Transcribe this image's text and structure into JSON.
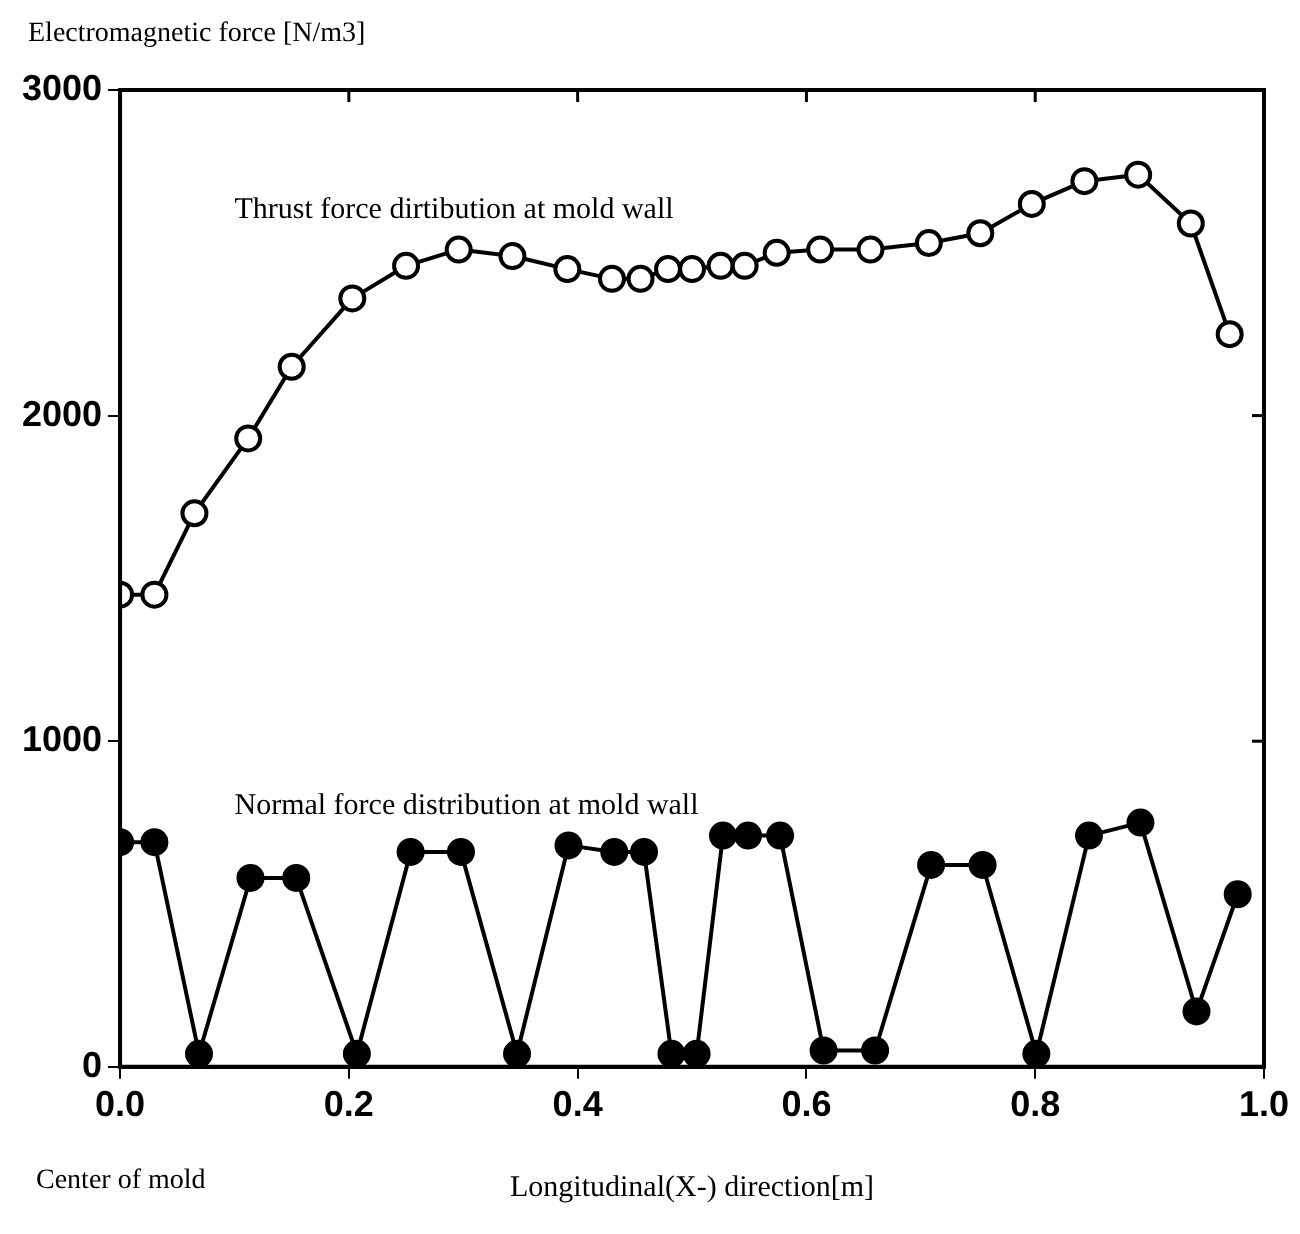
{
  "chart_data": {
    "type": "line",
    "ylabel": "Electromagnetic force [N/m3]",
    "xlabel": "Longitudinal(X-) direction[m]",
    "annotations": [
      "Center of mold"
    ],
    "xlim": [
      0,
      1
    ],
    "ylim": [
      0,
      3000
    ],
    "xticks": [
      {
        "value": 0,
        "label": "0.0"
      },
      {
        "value": 0.2,
        "label": "0.2"
      },
      {
        "value": 0.4,
        "label": "0.4"
      },
      {
        "value": 0.6,
        "label": "0.6"
      },
      {
        "value": 0.8,
        "label": "0.8"
      },
      {
        "value": 1,
        "label": "1.0"
      }
    ],
    "yticks": [
      0,
      1000,
      2000,
      3000
    ],
    "grid": false,
    "legend": false,
    "marker": "circle",
    "line_style": "solid",
    "series": [
      {
        "name": "Thrust force dirtibution at mold wall",
        "color": "#000000",
        "x": [
          0,
          0.03,
          0.065,
          0.112,
          0.15,
          0.203,
          0.25,
          0.296,
          0.343,
          0.391,
          0.43,
          0.455,
          0.479,
          0.5,
          0.525,
          0.546,
          0.574,
          0.612,
          0.656,
          0.707,
          0.752,
          0.797,
          0.843,
          0.89,
          0.936,
          0.97
        ],
        "values": [
          1450,
          1450,
          1700,
          1930,
          2150,
          2360,
          2460,
          2510,
          2490,
          2450,
          2420,
          2420,
          2450,
          2450,
          2460,
          2460,
          2500,
          2510,
          2510,
          2530,
          2560,
          2650,
          2720,
          2740,
          2590,
          2250
        ]
      },
      {
        "name": "Normal force distribution at mold wall",
        "color": "#000000",
        "x": [
          0,
          0.03,
          0.069,
          0.114,
          0.154,
          0.207,
          0.254,
          0.298,
          0.347,
          0.392,
          0.432,
          0.458,
          0.482,
          0.504,
          0.527,
          0.549,
          0.577,
          0.615,
          0.66,
          0.709,
          0.754,
          0.801,
          0.847,
          0.892,
          0.941,
          0.977
        ],
        "values": [
          690,
          690,
          40,
          580,
          580,
          40,
          660,
          660,
          40,
          680,
          660,
          660,
          40,
          40,
          710,
          710,
          710,
          50,
          50,
          620,
          620,
          40,
          710,
          750,
          170,
          530
        ]
      }
    ]
  }
}
